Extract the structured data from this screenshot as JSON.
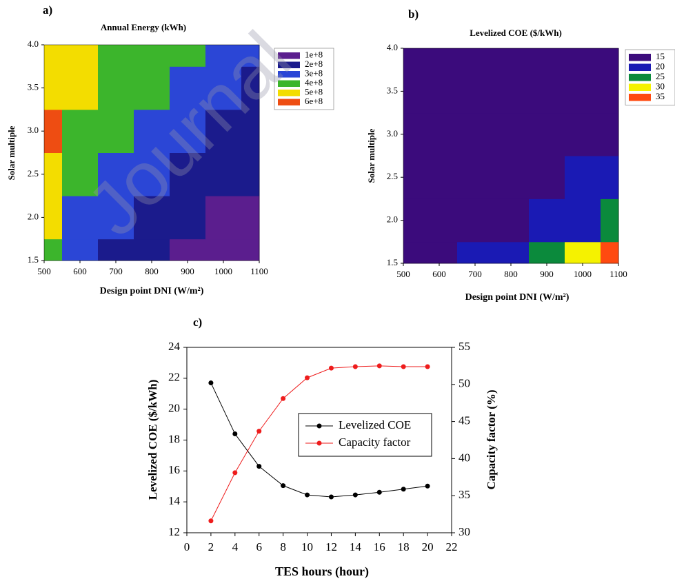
{
  "chart_data": [
    {
      "type": "contour",
      "panel_label": "a)",
      "title": "Annual Energy (kWh)",
      "x_label": "Design point DNI (W/m²)",
      "y_label": "Solar multiple",
      "x": [
        500,
        600,
        700,
        800,
        900,
        1000,
        1100
      ],
      "y": [
        1.5,
        2.0,
        2.5,
        3.0,
        3.5,
        4.0
      ],
      "z": [
        [
          400000000,
          300000000,
          260000000,
          220000000,
          180000000,
          150000000,
          120000000
        ],
        [
          500000000,
          350000000,
          300000000,
          260000000,
          220000000,
          190000000,
          160000000
        ],
        [
          580000000,
          430000000,
          350000000,
          300000000,
          260000000,
          220000000,
          200000000
        ],
        [
          600000000,
          480000000,
          400000000,
          350000000,
          310000000,
          270000000,
          240000000
        ],
        [
          530000000,
          500000000,
          430000000,
          400000000,
          360000000,
          320000000,
          290000000
        ],
        [
          500000000,
          500000000,
          460000000,
          430000000,
          400000000,
          370000000,
          340000000
        ]
      ],
      "levels": [
        {
          "value": 100000000,
          "label": "1e+8"
        },
        {
          "value": 200000000,
          "label": "2e+8"
        },
        {
          "value": 300000000,
          "label": "3e+8"
        },
        {
          "value": 400000000,
          "label": "4e+8"
        },
        {
          "value": 500000000,
          "label": "5e+8"
        },
        {
          "value": 600000000,
          "label": "6e+8"
        }
      ],
      "colors": [
        "#5b1e8e",
        "#1b1b8c",
        "#2b46d6",
        "#3cb52c",
        "#f3dd00",
        "#ee4d12"
      ],
      "xlim": [
        500,
        1100
      ],
      "xticks": [
        500,
        600,
        700,
        800,
        900,
        1000,
        1100
      ],
      "ylim": [
        1.5,
        4.0
      ],
      "yticks": [
        1.5,
        {
          "value": 2,
          "label": "2.0"
        },
        2.5,
        {
          "value": 3,
          "label": "3.0"
        },
        3.5,
        {
          "value": 4,
          "label": "4.0"
        }
      ],
      "watermark": "Journal"
    },
    {
      "type": "contour",
      "panel_label": "b)",
      "title": "Levelized COE ($/kWh)",
      "x_label": "Design point DNI (W/m²)",
      "y_label": "Solar multiple",
      "x": [
        500,
        600,
        700,
        800,
        900,
        1000,
        1100
      ],
      "y": [
        1.5,
        2.0,
        2.5,
        3.0,
        3.5,
        4.0
      ],
      "z": [
        [
          17,
          18,
          20,
          24,
          29,
          33,
          36
        ],
        [
          16,
          16,
          17,
          19,
          21,
          24,
          27
        ],
        [
          15.5,
          15.5,
          16,
          17,
          18,
          20,
          22
        ],
        [
          15.5,
          15,
          16,
          16,
          17,
          18,
          19
        ],
        [
          16,
          16,
          16,
          17,
          17,
          18,
          19
        ],
        [
          17,
          17,
          17,
          18,
          18,
          19,
          19
        ]
      ],
      "levels": [
        15,
        20,
        25,
        30,
        35
      ],
      "colors": [
        "#3b0b7c",
        "#1a1ab4",
        "#0b8a3c",
        "#f5f200",
        "#ff4a10"
      ],
      "xlim": [
        500,
        1100
      ],
      "xticks": [
        500,
        600,
        700,
        800,
        900,
        1000,
        1100
      ],
      "ylim": [
        1.5,
        4.0
      ],
      "yticks": [
        1.5,
        {
          "value": 2,
          "label": "2.0"
        },
        2.5,
        {
          "value": 3,
          "label": "3.0"
        },
        3.5,
        {
          "value": 4,
          "label": "4.0"
        }
      ]
    },
    {
      "type": "line",
      "panel_label": "c)",
      "x_label": "TES hours (hour)",
      "y_label": "Levelized COE ($/kWh)",
      "y2_label": "Capacity factor (%)",
      "x": [
        2,
        4,
        6,
        8,
        10,
        12,
        14,
        16,
        18,
        20
      ],
      "series": [
        {
          "name": "Levelized COE",
          "color": "#000000",
          "values": [
            21.7,
            18.4,
            16.3,
            15.05,
            14.45,
            14.32,
            14.45,
            14.62,
            14.82,
            15.02
          ]
        },
        {
          "name": "Capacity factor",
          "color": "#ee1c1c",
          "axis": "y2",
          "values": [
            31.6,
            38.1,
            43.7,
            48.1,
            50.9,
            52.2,
            52.4,
            52.5,
            52.4,
            52.4
          ]
        }
      ],
      "xlim": [
        0,
        22
      ],
      "xticks": [
        0,
        2,
        4,
        6,
        8,
        10,
        12,
        14,
        16,
        18,
        20,
        22
      ],
      "ylim": [
        12,
        24
      ],
      "yticks": [
        12,
        14,
        16,
        18,
        20,
        22,
        24
      ],
      "y2lim": [
        30,
        55
      ],
      "y2ticks": [
        30,
        35,
        40,
        45,
        50,
        55
      ]
    }
  ]
}
